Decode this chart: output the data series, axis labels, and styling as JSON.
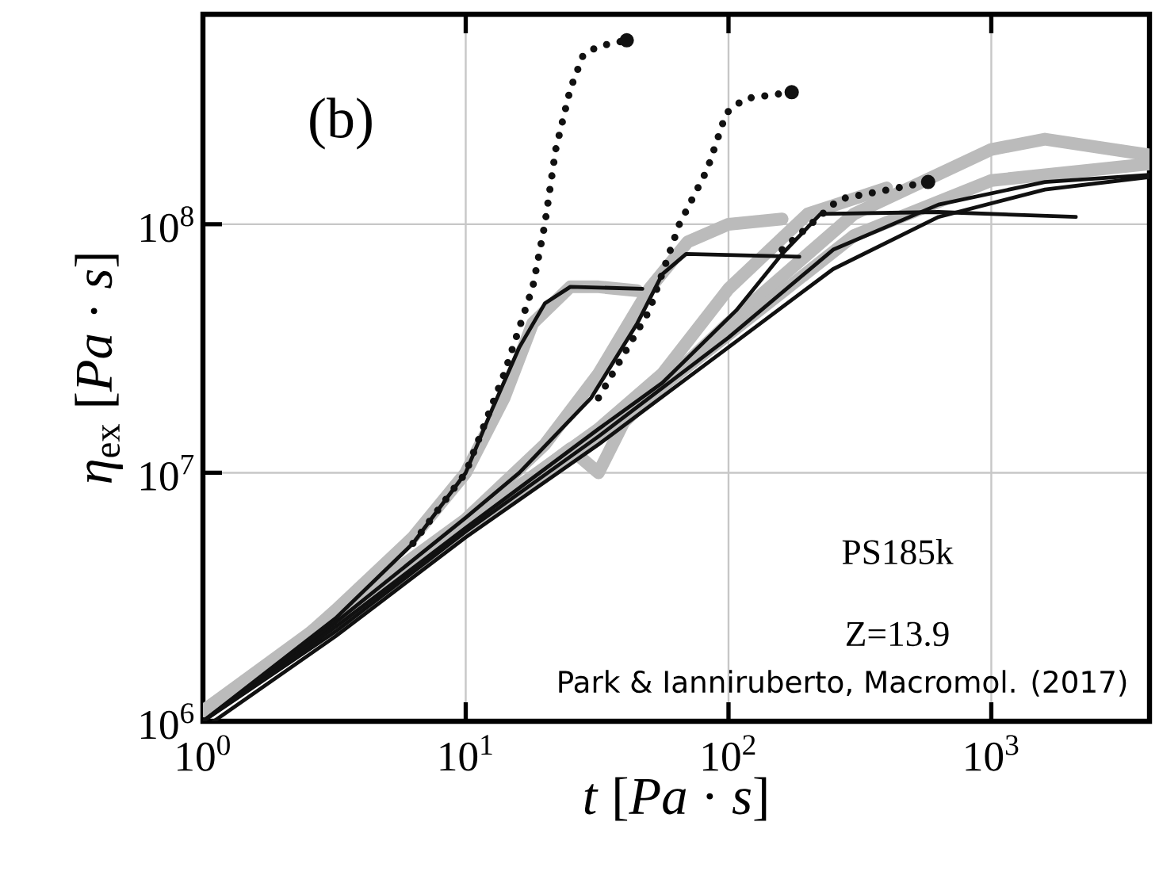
{
  "chart_data": {
    "type": "line",
    "xlabel": "*t* [*Pa* · *s*]",
    "ylabel": "*η*$_{ex}$ [*Pa* · *s*]",
    "annotations": [
      "(b)",
      "PS185k",
      "Z=13.9",
      "Park & Ianniruberto, Macromol. (2017)"
    ],
    "log": "xy",
    "grid": true,
    "legend": false,
    "xlim": [
      1,
      4000
    ],
    "ylim": [
      1000000,
      700000000
    ],
    "xticks": [
      {
        "value": 1,
        "label": "10$^{0}$"
      },
      {
        "value": 10,
        "label": "10$^{1}$"
      },
      {
        "value": 100,
        "label": "10$^{2}$"
      },
      {
        "value": 1000,
        "label": "10$^{3}$"
      }
    ],
    "yticks": [
      {
        "value": 1000000,
        "label": "10$^{6}$"
      },
      {
        "value": 10000000,
        "label": "10$^{7}$"
      },
      {
        "value": 100000000,
        "label": "10$^{8}$"
      }
    ],
    "series": [
      {
        "color": "#bbbbbb",
        "line_style": "solid",
        "x": [
          1,
          2,
          3.2,
          6.3,
          10,
          14,
          18,
          25,
          32,
          45
        ],
        "values": [
          1100000,
          1800000,
          2800000,
          5500000,
          10000000,
          20000000,
          40000000,
          56000000,
          56000000,
          54000000
        ]
      },
      {
        "color": "#bbbbbb",
        "line_style": "solid",
        "x": [
          1,
          3.2,
          10,
          20,
          32,
          50,
          70,
          100,
          160
        ],
        "values": [
          1100000,
          2700000,
          6500000,
          13000000,
          25000000,
          55000000,
          85000000,
          100000000,
          105000000
        ]
      },
      {
        "color": "#bbbbbb",
        "line_style": "solid",
        "x": [
          1,
          3.2,
          10,
          32,
          56,
          100,
          200,
          400
        ],
        "values": [
          1100000,
          2600000,
          6200000,
          15000000,
          25000000,
          55000000,
          110000000,
          140000000
        ]
      },
      {
        "color": "#bbbbbb",
        "line_style": "solid",
        "x": [
          1,
          3.2,
          10,
          25,
          32,
          40,
          100,
          300,
          1000,
          1600,
          4000
        ],
        "values": [
          1100000,
          2500000,
          6000000,
          12500000,
          10000000,
          16000000,
          40000000,
          110000000,
          200000000,
          220000000,
          190000000
        ]
      },
      {
        "color": "#bbbbbb",
        "line_style": "solid",
        "x": [
          1,
          3.2,
          10,
          32,
          100,
          300,
          1000,
          4000
        ],
        "values": [
          1100000,
          2400000,
          5800000,
          14000000,
          36000000,
          90000000,
          150000000,
          175000000
        ]
      },
      {
        "color": "#111111",
        "line_style": "solid",
        "x": [
          1,
          3.2,
          6.3,
          10,
          12.6,
          16,
          20,
          25,
          47
        ],
        "values": [
          1000000,
          2600000,
          5200000,
          10000000,
          18000000,
          32000000,
          48000000,
          56000000,
          55000000
        ]
      },
      {
        "color": "#111111",
        "line_style": "solid",
        "x": [
          1,
          3.2,
          10,
          16,
          30,
          45,
          56,
          69,
          186
        ],
        "values": [
          1000000,
          2500000,
          6600000,
          10000000,
          20000000,
          40000000,
          63000000,
          76000000,
          74000000
        ]
      },
      {
        "color": "#111111",
        "line_style": "solid",
        "x": [
          1,
          3.2,
          10,
          32,
          56,
          107,
          160,
          224,
          630,
          2100
        ],
        "values": [
          1000000,
          2400000,
          6000000,
          15000000,
          23000000,
          45000000,
          76000000,
          110000000,
          112000000,
          107000000
        ]
      },
      {
        "color": "#111111",
        "line_style": "solid",
        "x": [
          1,
          3.2,
          10,
          32,
          100,
          250,
          630,
          1600,
          4000
        ],
        "values": [
          1000000,
          2300000,
          5800000,
          14000000,
          35000000,
          79000000,
          120000000,
          148000000,
          158000000
        ]
      },
      {
        "color": "#111111",
        "line_style": "solid",
        "x": [
          1.1,
          3.2,
          10,
          32,
          100,
          250,
          630,
          1600,
          4000
        ],
        "values": [
          1000000,
          2200000,
          5500000,
          13000000,
          32000000,
          66000000,
          107000000,
          138000000,
          155000000
        ]
      },
      {
        "color": "#111111",
        "line_style": "dotted",
        "x": [
          6.3,
          10,
          14,
          18,
          20,
          22,
          25,
          28,
          32,
          41
        ],
        "values": [
          5200000,
          10000000,
          25000000,
          56000000,
          100000000,
          200000000,
          350000000,
          480000000,
          520000000,
          550000000
        ]
      },
      {
        "color": "#111111",
        "line_style": "dotted",
        "x": [
          32,
          50,
          65,
          83,
          98,
          115,
          174
        ],
        "values": [
          20000000,
          45000000,
          100000000,
          166000000,
          280000000,
          320000000,
          340000000
        ]
      },
      {
        "color": "#111111",
        "line_style": "dotted",
        "x": [
          160,
          263,
          575
        ],
        "values": [
          79000000,
          126000000,
          148000000
        ]
      }
    ]
  }
}
